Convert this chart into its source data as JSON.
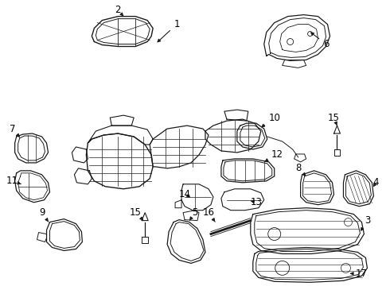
{
  "bg": "#ffffff",
  "lc": "#1a1a1a",
  "tc": "#000000",
  "fw": 4.9,
  "fh": 3.6,
  "dpi": 100
}
